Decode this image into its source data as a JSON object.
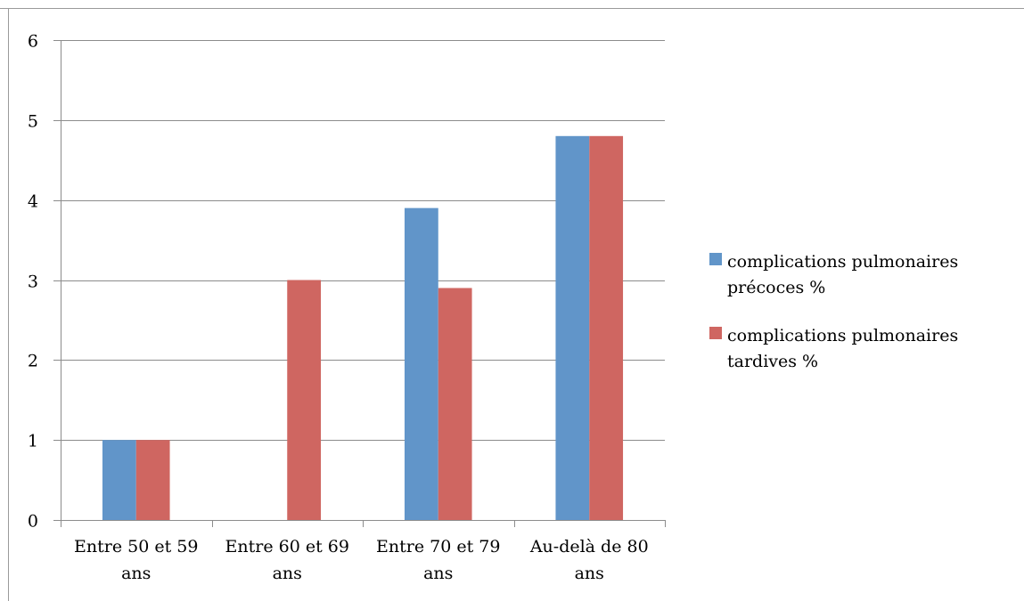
{
  "chart_data": {
    "type": "bar",
    "categories": [
      [
        "Entre 50 et 59",
        "ans"
      ],
      [
        "Entre 60 et 69",
        "ans"
      ],
      [
        "Entre 70 et 79",
        "ans"
      ],
      [
        "Au-delà de 80",
        "ans"
      ]
    ],
    "series": [
      {
        "name": [
          "complications pulmonaires",
          "précoces %"
        ],
        "color": "#6195c9",
        "values": [
          1,
          0,
          3.9,
          4.8
        ]
      },
      {
        "name": [
          "complications pulmonaires",
          "tardives %"
        ],
        "color": "#cf6661",
        "values": [
          1,
          3,
          2.9,
          4.8
        ]
      }
    ],
    "ylim": [
      0,
      6
    ],
    "yticks": [
      "0",
      "1",
      "2",
      "3",
      "4",
      "5",
      "6"
    ],
    "grid": true,
    "legend_position": "right"
  }
}
